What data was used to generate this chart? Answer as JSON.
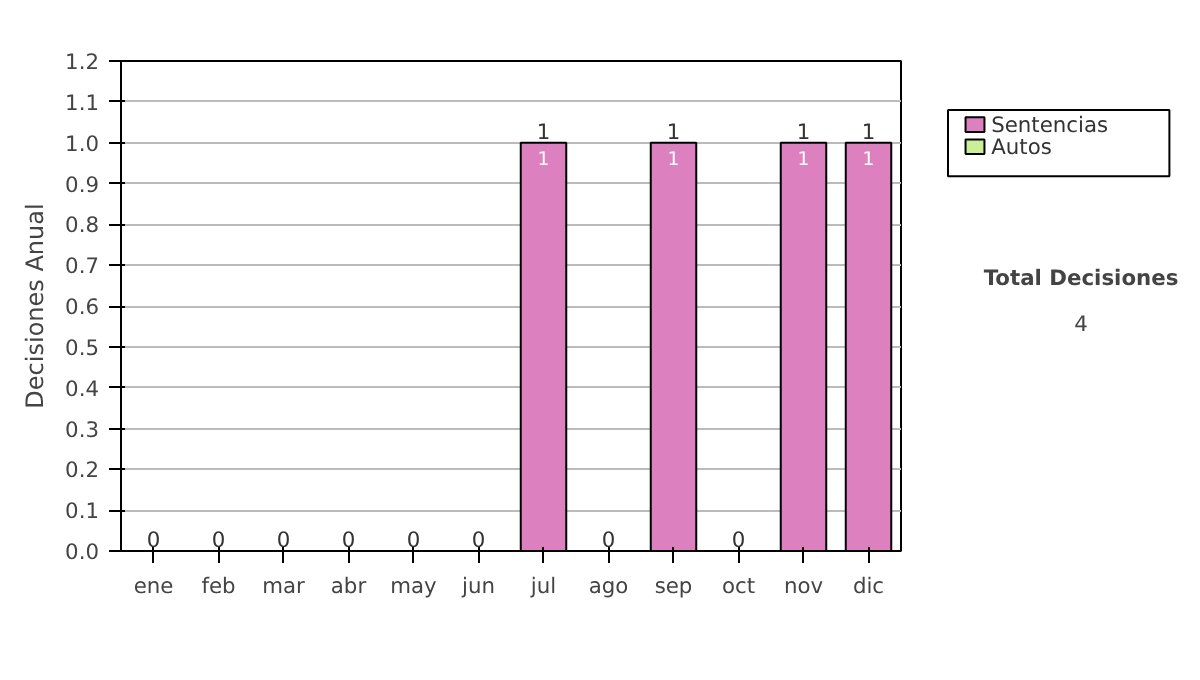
{
  "chart_data": {
    "type": "bar",
    "stacked": true,
    "ylabel": "Decisiones Anual",
    "categories": [
      "ene",
      "feb",
      "mar",
      "abr",
      "may",
      "jun",
      "jul",
      "ago",
      "sep",
      "oct",
      "nov",
      "dic"
    ],
    "series": [
      {
        "name": "Sentencias",
        "color": "#dd80c0",
        "values": [
          0,
          0,
          0,
          0,
          0,
          0,
          1,
          0,
          1,
          0,
          1,
          1
        ],
        "value_labels": [
          null,
          null,
          null,
          null,
          null,
          null,
          "1",
          null,
          "1",
          null,
          "1",
          "1"
        ]
      },
      {
        "name": "Autos",
        "color": "#ccee99",
        "values": [
          0,
          0,
          0,
          0,
          0,
          0,
          0,
          0,
          0,
          0,
          0,
          0
        ]
      }
    ],
    "totals": [
      "0",
      "0",
      "0",
      "0",
      "0",
      "0",
      "1",
      "0",
      "1",
      "0",
      "1",
      "1"
    ],
    "ylim": [
      0,
      1.2
    ],
    "yticks": [
      {
        "value": 0,
        "label": "0.0"
      },
      0.1,
      0.2,
      0.3,
      0.4,
      0.5,
      0.6,
      0.7,
      0.8,
      0.9,
      {
        "value": 1,
        "label": "1.0"
      },
      1.1,
      1.2
    ],
    "grid": "y",
    "legend": "right",
    "annotations": [
      "Total Decisiones",
      "4"
    ]
  }
}
